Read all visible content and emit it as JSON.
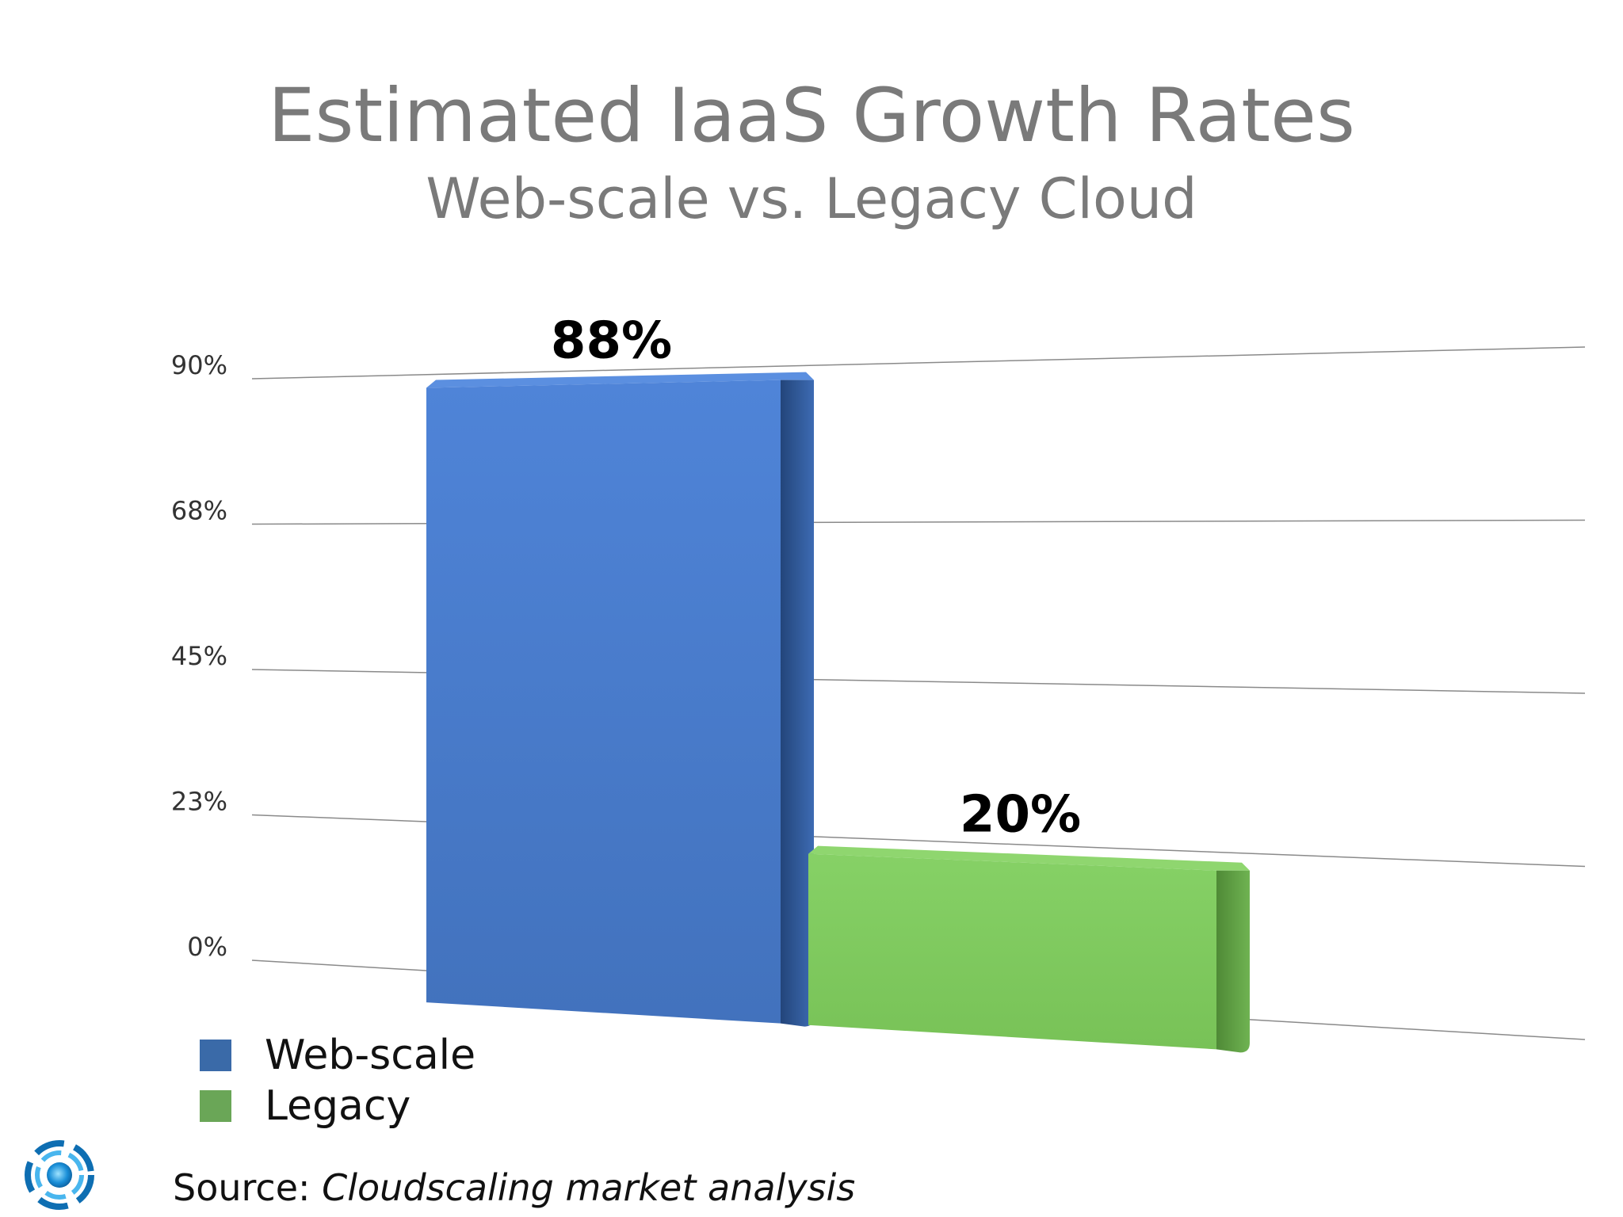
{
  "slide": {
    "title": "Estimated IaaS Growth Rates",
    "subtitle": "Web-scale vs. Legacy Cloud",
    "source_label": "Source:",
    "source_detail": "Cloudscaling market analysis"
  },
  "chart_data": {
    "type": "bar",
    "title": "Estimated IaaS Growth Rates",
    "subtitle": "Web-scale vs. Legacy Cloud",
    "categories": [
      "Web-scale",
      "Legacy"
    ],
    "values": [
      88,
      20
    ],
    "value_labels": [
      "88%",
      "20%"
    ],
    "colors": [
      "#4a7ccc",
      "#7cc55c"
    ],
    "yticks": [
      "0%",
      "23%",
      "45%",
      "68%",
      "90%"
    ],
    "ylim": [
      0,
      90
    ],
    "grid": true,
    "legend": {
      "position": "bottom-left",
      "entries": [
        {
          "label": "Web-scale",
          "color": "#3a6aa8"
        },
        {
          "label": "Legacy",
          "color": "#6aa657"
        }
      ]
    },
    "style": "3d"
  },
  "icons": {
    "logo": "cloudscaling-logo-icon"
  }
}
